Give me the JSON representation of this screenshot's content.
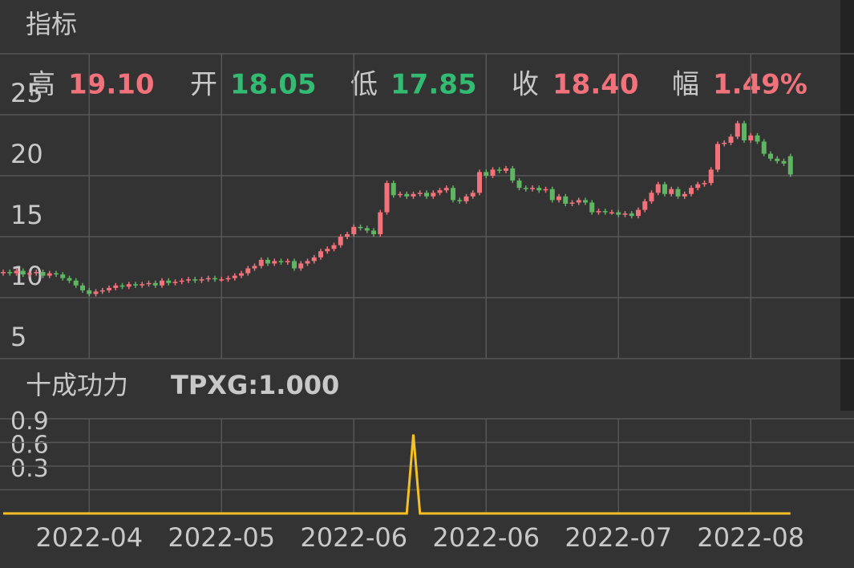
{
  "header": {
    "title": "指标"
  },
  "quote": [
    {
      "label": "高",
      "value": "19.10",
      "color": "#f2727c"
    },
    {
      "label": "开",
      "value": "18.05",
      "color": "#33bb72"
    },
    {
      "label": "低",
      "value": "17.85",
      "color": "#33bb72"
    },
    {
      "label": "收",
      "value": "18.40",
      "color": "#f2727c"
    },
    {
      "label": "幅",
      "value": "1.49%",
      "color": "#f2727c"
    }
  ],
  "indicator": {
    "name": "十成功力",
    "value_label": "TPXG:1.000",
    "color": "#f4c025"
  },
  "chart_data": [
    {
      "type": "candlestick",
      "up_color": "#f2727c",
      "down_color": "#5fb562",
      "ylim": [
        5,
        30
      ],
      "yticks": [
        5,
        10,
        15,
        20,
        25
      ],
      "grid": true,
      "open": [
        12.0,
        12.1,
        12.0,
        12.2,
        11.9,
        12.0,
        12.1,
        11.8,
        12.0,
        11.9,
        11.6,
        11.4,
        11.0,
        10.6,
        10.3,
        10.5,
        10.6,
        10.8,
        11.0,
        10.9,
        11.1,
        11.0,
        11.1,
        11.2,
        11.0,
        11.4,
        11.2,
        11.3,
        11.4,
        11.5,
        11.4,
        11.5,
        11.6,
        11.5,
        11.5,
        11.6,
        11.8,
        12.0,
        12.4,
        12.6,
        13.1,
        12.8,
        13.0,
        12.9,
        13.0,
        12.4,
        12.8,
        13.0,
        13.3,
        13.8,
        14.0,
        14.3,
        15.0,
        15.2,
        15.8,
        15.7,
        15.5,
        15.2,
        17.0,
        19.4,
        18.4,
        18.5,
        18.3,
        18.5,
        18.6,
        18.3,
        18.6,
        18.8,
        19.0,
        18.0,
        17.9,
        18.3,
        18.6,
        20.3,
        20.0,
        20.5,
        20.4,
        20.6,
        19.6,
        19.0,
        18.9,
        19.0,
        18.8,
        18.9,
        18.0,
        18.3,
        17.7,
        17.8,
        18.0,
        17.8,
        17.0,
        17.1,
        17.0,
        17.0,
        16.8,
        16.9,
        16.7,
        17.2,
        17.9,
        18.6,
        19.3,
        18.5,
        18.9,
        18.3,
        18.5,
        19.0,
        19.3,
        19.4,
        20.5,
        22.6,
        22.7,
        23.2,
        24.3,
        22.9,
        23.3,
        22.8,
        21.8,
        21.4,
        21.2,
        21.6
      ],
      "high": [
        12.3,
        12.3,
        12.4,
        12.4,
        12.2,
        12.3,
        12.3,
        12.2,
        12.2,
        12.1,
        11.8,
        11.6,
        11.2,
        10.8,
        10.7,
        10.8,
        11.0,
        11.2,
        11.2,
        11.3,
        11.3,
        11.3,
        11.4,
        11.4,
        11.6,
        11.6,
        11.5,
        11.6,
        11.7,
        11.7,
        11.7,
        11.8,
        11.8,
        11.7,
        11.8,
        12.0,
        12.2,
        12.6,
        12.8,
        13.3,
        13.3,
        13.2,
        13.2,
        13.2,
        13.2,
        13.0,
        13.2,
        13.5,
        14.0,
        14.2,
        14.5,
        15.2,
        15.4,
        16.0,
        16.0,
        15.9,
        15.7,
        17.2,
        19.6,
        19.6,
        18.7,
        18.7,
        18.7,
        18.8,
        18.8,
        18.8,
        19.0,
        19.2,
        19.2,
        18.2,
        18.5,
        18.8,
        20.5,
        20.5,
        20.7,
        20.7,
        20.8,
        20.8,
        19.8,
        19.2,
        19.2,
        19.2,
        19.1,
        19.1,
        18.5,
        18.5,
        18.0,
        18.2,
        18.2,
        18.0,
        17.3,
        17.3,
        17.2,
        17.2,
        17.1,
        17.1,
        17.4,
        18.1,
        18.8,
        19.5,
        19.5,
        19.1,
        19.1,
        18.7,
        19.2,
        19.5,
        19.6,
        20.7,
        22.8,
        22.9,
        23.4,
        24.5,
        24.5,
        23.5,
        23.5,
        23.0,
        22.0,
        21.6,
        21.4,
        21.8
      ],
      "low": [
        11.8,
        11.8,
        11.8,
        11.7,
        11.7,
        11.8,
        11.6,
        11.6,
        11.7,
        11.4,
        11.2,
        10.8,
        10.4,
        10.1,
        10.1,
        10.3,
        10.4,
        10.6,
        10.7,
        10.7,
        10.8,
        10.8,
        10.9,
        10.8,
        10.8,
        11.0,
        11.0,
        11.1,
        11.2,
        11.2,
        11.2,
        11.3,
        11.3,
        11.3,
        11.3,
        11.4,
        11.6,
        11.8,
        12.2,
        12.4,
        12.6,
        12.6,
        12.7,
        12.7,
        12.2,
        12.2,
        12.6,
        12.8,
        13.1,
        13.6,
        13.8,
        14.1,
        14.8,
        15.0,
        15.5,
        15.3,
        15.0,
        15.0,
        16.8,
        18.2,
        18.2,
        18.1,
        18.1,
        18.3,
        18.1,
        18.1,
        18.4,
        18.6,
        17.8,
        17.7,
        17.7,
        18.1,
        18.4,
        19.8,
        19.8,
        20.2,
        20.2,
        19.4,
        18.8,
        18.7,
        18.7,
        18.6,
        18.6,
        17.8,
        17.8,
        17.5,
        17.5,
        17.6,
        17.6,
        16.8,
        16.8,
        16.8,
        16.8,
        16.6,
        16.6,
        16.5,
        16.5,
        17.0,
        17.7,
        18.4,
        18.3,
        18.3,
        18.1,
        18.1,
        18.3,
        18.8,
        19.1,
        19.2,
        20.3,
        22.4,
        22.5,
        23.0,
        22.7,
        22.7,
        22.6,
        21.6,
        21.2,
        21.0,
        20.8,
        19.9
      ],
      "close": [
        12.1,
        12.0,
        12.2,
        11.9,
        12.0,
        12.1,
        11.8,
        12.0,
        11.9,
        11.6,
        11.4,
        11.0,
        10.6,
        10.3,
        10.5,
        10.6,
        10.8,
        11.0,
        10.9,
        11.1,
        11.0,
        11.1,
        11.2,
        11.0,
        11.4,
        11.2,
        11.3,
        11.4,
        11.5,
        11.4,
        11.5,
        11.6,
        11.5,
        11.5,
        11.6,
        11.8,
        12.0,
        12.4,
        12.6,
        13.1,
        12.8,
        13.0,
        12.9,
        13.0,
        12.4,
        12.8,
        13.0,
        13.3,
        13.8,
        14.0,
        14.3,
        15.0,
        15.2,
        15.8,
        15.7,
        15.5,
        15.2,
        17.0,
        19.4,
        18.4,
        18.5,
        18.3,
        18.5,
        18.6,
        18.3,
        18.6,
        18.8,
        19.0,
        18.0,
        17.9,
        18.3,
        18.6,
        20.3,
        20.0,
        20.5,
        20.4,
        20.6,
        19.6,
        19.0,
        18.9,
        19.0,
        18.8,
        18.9,
        18.0,
        18.3,
        17.7,
        17.8,
        18.0,
        17.8,
        17.0,
        17.1,
        17.0,
        17.0,
        16.8,
        16.9,
        16.7,
        17.2,
        17.9,
        18.6,
        19.3,
        18.5,
        18.9,
        18.3,
        18.5,
        19.0,
        19.3,
        19.4,
        20.5,
        22.6,
        22.7,
        23.2,
        24.3,
        22.9,
        23.3,
        22.8,
        21.8,
        21.4,
        21.2,
        21.0,
        20.1
      ]
    },
    {
      "type": "line",
      "color": "#f4c025",
      "ylim": [
        0,
        1.2
      ],
      "yticks": [
        0.3,
        0.6,
        0.9
      ],
      "grid": true,
      "categories": [
        null,
        null,
        null,
        null,
        null,
        null,
        null,
        null,
        null,
        null,
        null,
        null,
        null,
        "2022-04",
        null,
        null,
        null,
        null,
        null,
        null,
        null,
        null,
        null,
        null,
        null,
        null,
        null,
        null,
        null,
        null,
        null,
        null,
        null,
        "2022-05",
        null,
        null,
        null,
        null,
        null,
        null,
        null,
        null,
        null,
        null,
        null,
        null,
        null,
        null,
        null,
        null,
        null,
        null,
        null,
        "2022-06",
        null,
        null,
        null,
        null,
        null,
        null,
        null,
        null,
        null,
        null,
        null,
        null,
        null,
        null,
        null,
        null,
        null,
        null,
        null,
        "2022-06",
        null,
        null,
        null,
        null,
        null,
        null,
        null,
        null,
        null,
        null,
        null,
        null,
        null,
        null,
        null,
        null,
        null,
        null,
        null,
        "2022-07",
        null,
        null,
        null,
        null,
        null,
        null,
        null,
        null,
        null,
        null,
        null,
        null,
        null,
        null,
        null,
        null,
        null,
        null,
        null,
        "2022-08",
        null,
        null,
        null,
        null,
        null,
        null
      ],
      "values": [
        0,
        0,
        0,
        0,
        0,
        0,
        0,
        0,
        0,
        0,
        0,
        0,
        0,
        0,
        0,
        0,
        0,
        0,
        0,
        0,
        0,
        0,
        0,
        0,
        0,
        0,
        0,
        0,
        0,
        0,
        0,
        0,
        0,
        0,
        0,
        0,
        0,
        0,
        0,
        0,
        0,
        0,
        0,
        0,
        0,
        0,
        0,
        0,
        0,
        0,
        0,
        0,
        0,
        0,
        0,
        0,
        0,
        0,
        0,
        0,
        0,
        0,
        1,
        0,
        0,
        0,
        0,
        0,
        0,
        0,
        0,
        0,
        0,
        0,
        0,
        0,
        0,
        0,
        0,
        0,
        0,
        0,
        0,
        0,
        0,
        0,
        0,
        0,
        0,
        0,
        0,
        0,
        0,
        0,
        0,
        0,
        0,
        0,
        0,
        0,
        0,
        0,
        0,
        0,
        0,
        0,
        0,
        0,
        0,
        0,
        0,
        0,
        0,
        0,
        0,
        0,
        0,
        0,
        0,
        0
      ]
    }
  ]
}
